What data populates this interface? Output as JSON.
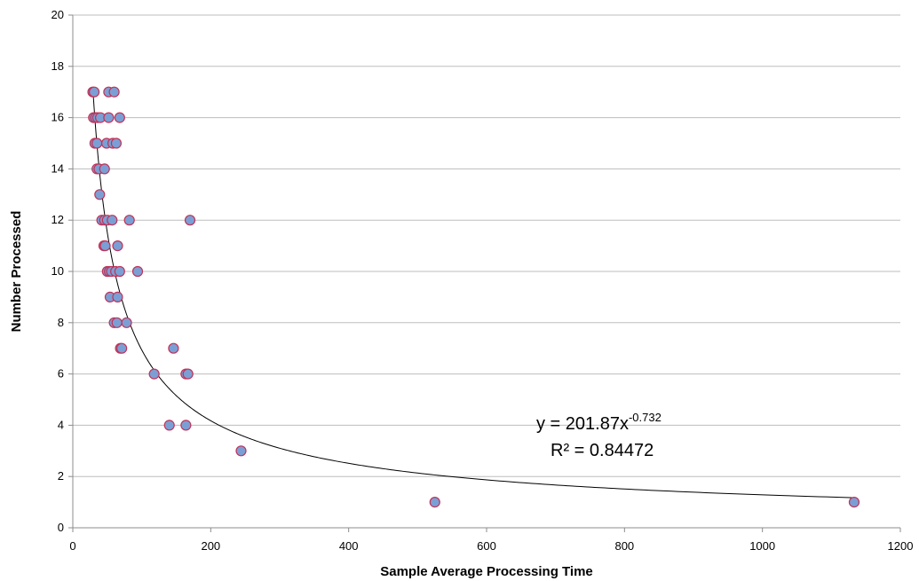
{
  "chart_data": {
    "type": "scatter",
    "title": "",
    "xlabel": "Sample Average Processing Time",
    "ylabel": "Number Processed",
    "xlim": [
      0,
      1200
    ],
    "ylim": [
      0,
      20
    ],
    "x_ticks": [
      "0",
      "200",
      "400",
      "600",
      "800",
      "1000",
      "1200"
    ],
    "y_ticks": [
      "0",
      "2",
      "4",
      "6",
      "8",
      "10",
      "12",
      "14",
      "16",
      "18",
      "20"
    ],
    "grid": "horizontal",
    "legend": "none",
    "marker_fill": "#7b9fd4",
    "marker_edge": "#c0335a",
    "points": [
      {
        "x": 29,
        "y": 17
      },
      {
        "x": 31,
        "y": 17
      },
      {
        "x": 52,
        "y": 17
      },
      {
        "x": 60,
        "y": 17
      },
      {
        "x": 30,
        "y": 16
      },
      {
        "x": 33,
        "y": 16
      },
      {
        "x": 36,
        "y": 16
      },
      {
        "x": 40,
        "y": 16
      },
      {
        "x": 52,
        "y": 16
      },
      {
        "x": 68,
        "y": 16
      },
      {
        "x": 32,
        "y": 15
      },
      {
        "x": 35,
        "y": 15
      },
      {
        "x": 49,
        "y": 15
      },
      {
        "x": 58,
        "y": 15
      },
      {
        "x": 63,
        "y": 15
      },
      {
        "x": 35,
        "y": 14
      },
      {
        "x": 38,
        "y": 14
      },
      {
        "x": 46,
        "y": 14
      },
      {
        "x": 39,
        "y": 13
      },
      {
        "x": 42,
        "y": 12
      },
      {
        "x": 46,
        "y": 12
      },
      {
        "x": 50,
        "y": 12
      },
      {
        "x": 57,
        "y": 12
      },
      {
        "x": 82,
        "y": 12
      },
      {
        "x": 170,
        "y": 12
      },
      {
        "x": 45,
        "y": 11
      },
      {
        "x": 47,
        "y": 11
      },
      {
        "x": 65,
        "y": 11
      },
      {
        "x": 50,
        "y": 10
      },
      {
        "x": 53,
        "y": 10
      },
      {
        "x": 56,
        "y": 10
      },
      {
        "x": 62,
        "y": 10
      },
      {
        "x": 68,
        "y": 10
      },
      {
        "x": 94,
        "y": 10
      },
      {
        "x": 54,
        "y": 9
      },
      {
        "x": 65,
        "y": 9
      },
      {
        "x": 60,
        "y": 8
      },
      {
        "x": 64,
        "y": 8
      },
      {
        "x": 78,
        "y": 8
      },
      {
        "x": 69,
        "y": 7
      },
      {
        "x": 71,
        "y": 7
      },
      {
        "x": 146,
        "y": 7
      },
      {
        "x": 118,
        "y": 6
      },
      {
        "x": 164,
        "y": 6
      },
      {
        "x": 167,
        "y": 6
      },
      {
        "x": 140,
        "y": 4
      },
      {
        "x": 164,
        "y": 4
      },
      {
        "x": 244,
        "y": 3
      },
      {
        "x": 525,
        "y": 1
      },
      {
        "x": 1133,
        "y": 1
      }
    ],
    "trendline": {
      "type": "power",
      "coefficient": 201.87,
      "exponent": -0.732,
      "equation_prefix": "y = 201.87x",
      "equation_exponent": "-0.732",
      "r_squared_text": "R² = 0.84472"
    }
  }
}
